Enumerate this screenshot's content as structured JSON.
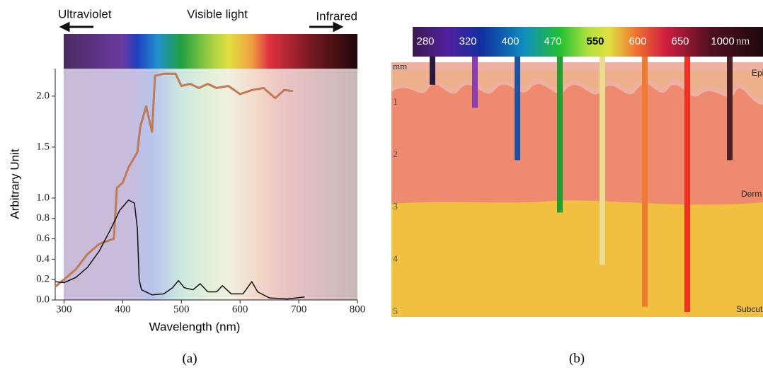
{
  "chart_data": {
    "type": "line",
    "annotations": [
      "Ultraviolet",
      "Visible light",
      "Infrared"
    ],
    "xlabel": "Wavelength (nm)",
    "ylabel": "Arbitrary Unit",
    "panel_label": "(a)",
    "xlim": [
      285,
      800
    ],
    "ylim": [
      0,
      2.27
    ],
    "xticks": [
      300,
      400,
      500,
      600,
      700,
      800
    ],
    "yticks": [
      {
        "value": 0,
        "label": "0.0"
      },
      0.2,
      0.4,
      0.6,
      0.8,
      {
        "value": 1,
        "label": "1.0"
      },
      1.5,
      {
        "value": 2,
        "label": "2.0"
      }
    ],
    "series": [
      {
        "color": "#c07a58",
        "x": [
          285,
          300,
          320,
          340,
          360,
          375,
          385,
          390,
          400,
          410,
          425,
          430,
          440,
          450,
          455,
          470,
          490,
          500,
          515,
          530,
          545,
          560,
          580,
          600,
          620,
          640,
          660,
          675,
          690
        ],
        "values": [
          0.13,
          0.2,
          0.3,
          0.45,
          0.55,
          0.58,
          0.6,
          1.1,
          1.15,
          1.3,
          1.45,
          1.7,
          1.9,
          1.65,
          2.2,
          2.22,
          2.22,
          2.1,
          2.12,
          2.08,
          2.12,
          2.08,
          2.1,
          2.02,
          2.06,
          2.08,
          1.98,
          2.06,
          2.05
        ]
      },
      {
        "color": "#111111",
        "x": [
          285,
          300,
          320,
          340,
          360,
          380,
          395,
          410,
          420,
          425,
          428,
          432,
          450,
          470,
          485,
          495,
          505,
          520,
          532,
          545,
          560,
          570,
          585,
          605,
          620,
          630,
          650,
          680,
          710
        ],
        "values": [
          0.18,
          0.17,
          0.22,
          0.32,
          0.48,
          0.7,
          0.88,
          0.98,
          0.95,
          0.7,
          0.2,
          0.1,
          0.05,
          0.06,
          0.12,
          0.19,
          0.12,
          0.1,
          0.16,
          0.08,
          0.08,
          0.14,
          0.06,
          0.06,
          0.18,
          0.08,
          0.02,
          0.01,
          0.03
        ]
      }
    ]
  },
  "diagram": {
    "unit": "nm",
    "depth_unit": "mm",
    "panel_label": "(b)",
    "depth_ticks": [
      1,
      2,
      3,
      4,
      5
    ],
    "layers": [
      "Epiderm",
      "Derm",
      "Subcut"
    ],
    "wavelengths": [
      {
        "label": "280",
        "color": "#2a1a3e",
        "depth": 0.66
      },
      {
        "label": "320",
        "color": "#8a3fb0",
        "depth": 1.1
      },
      {
        "label": "400",
        "color": "#2050a0",
        "depth": 2.1
      },
      {
        "label": "470",
        "color": "#20a030",
        "depth": 3.1
      },
      {
        "label": "550",
        "color": "#ebdc8f",
        "depth": 4.1
      },
      {
        "label": "600",
        "color": "#f07a30",
        "depth": 4.9
      },
      {
        "label": "650",
        "color": "#f03020",
        "depth": 5.0
      },
      {
        "label": "1000",
        "color": "#4a2020",
        "depth": 2.1
      }
    ]
  }
}
